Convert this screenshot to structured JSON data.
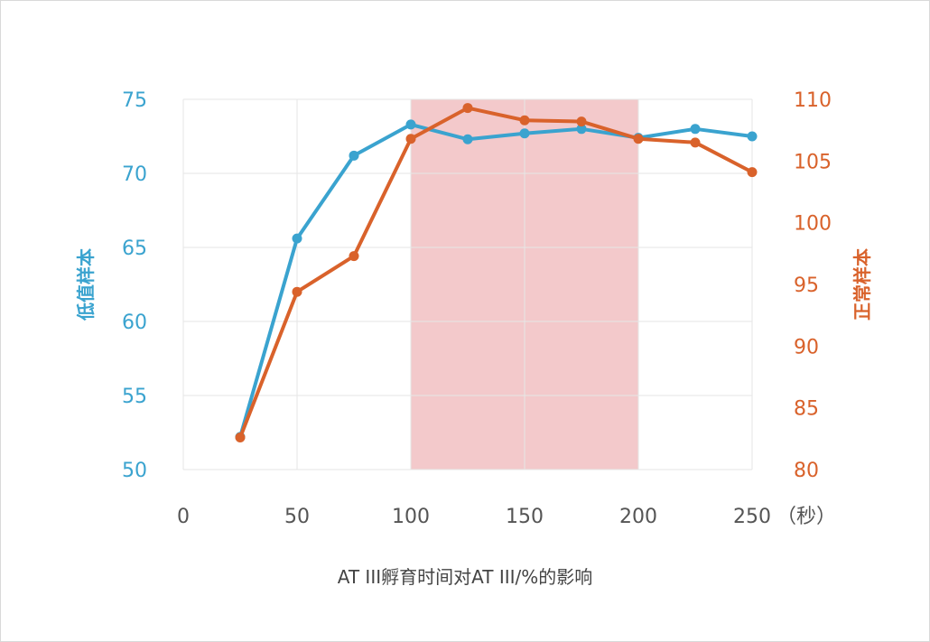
{
  "chart_data": {
    "type": "line",
    "title": "AT III孵育时间对AT III/%的影响",
    "x_unit": "（秒）",
    "xlim": [
      0,
      250
    ],
    "x_ticks": [
      0,
      50,
      100,
      150,
      200,
      250
    ],
    "highlight_range": [
      100,
      200
    ],
    "grid": true,
    "y_left": {
      "label": "低值样本",
      "ylim": [
        50,
        75
      ],
      "ticks": [
        50,
        55,
        60,
        65,
        70,
        75
      ]
    },
    "y_right": {
      "label": "正常样本",
      "ylim": [
        80,
        110
      ],
      "ticks": [
        80,
        85,
        90,
        95,
        100,
        105,
        110
      ]
    },
    "series": [
      {
        "axis": "left",
        "color": "#3aa3cf",
        "x": [
          25,
          50,
          75,
          100,
          125,
          150,
          175,
          200,
          225,
          250
        ],
        "y": [
          52.2,
          65.6,
          71.2,
          73.3,
          72.3,
          72.7,
          73.0,
          72.4,
          73.0,
          72.5
        ]
      },
      {
        "axis": "right",
        "color": "#d9622b",
        "x": [
          25,
          50,
          75,
          100,
          125,
          150,
          175,
          200,
          225,
          250
        ],
        "y": [
          82.6,
          94.4,
          97.3,
          106.8,
          109.3,
          108.3,
          108.2,
          106.8,
          106.5,
          104.1
        ]
      }
    ],
    "colors": {
      "highlight": "#f3c9cb",
      "grid": "#e6e6e6"
    }
  }
}
